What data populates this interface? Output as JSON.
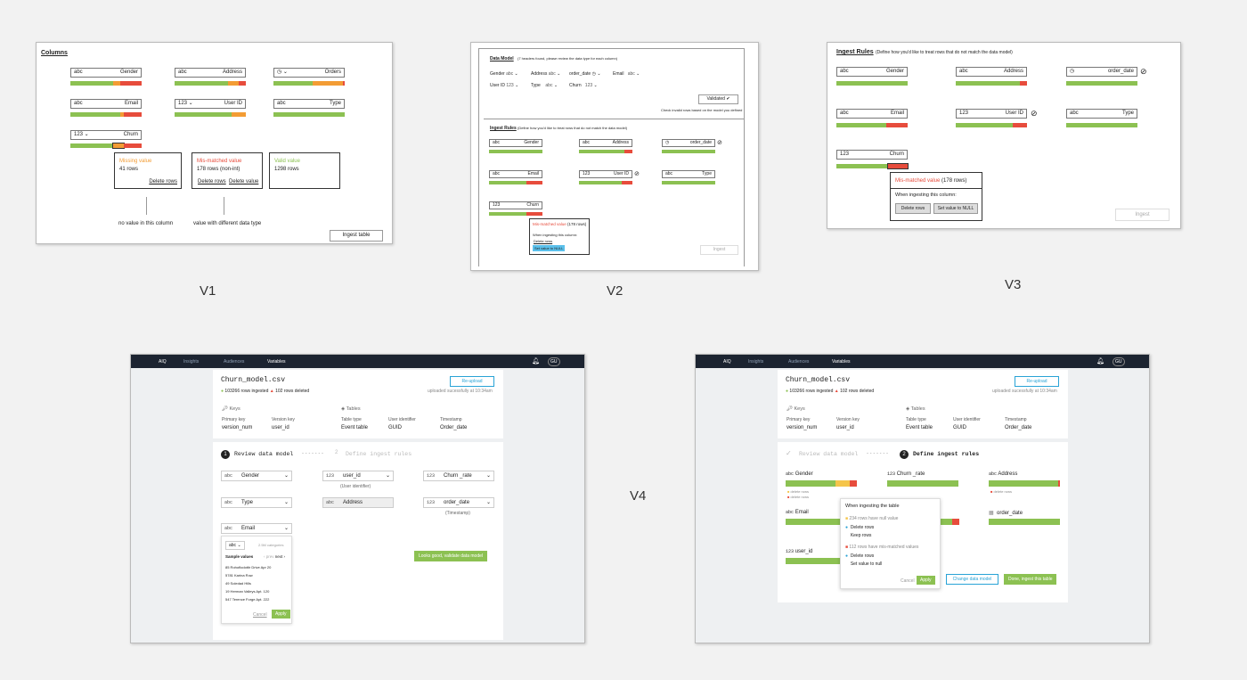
{
  "labels": {
    "v1": "V1",
    "v2": "V2",
    "v3": "V3",
    "v4": "V4"
  },
  "v1": {
    "title": "Columns",
    "columns": [
      {
        "type": "abc",
        "name": "Gender"
      },
      {
        "type": "abc",
        "name": "Address"
      },
      {
        "type": "clock",
        "name": "Orders"
      },
      {
        "type": "abc",
        "name": "Email"
      },
      {
        "type": "123",
        "name": "User ID"
      },
      {
        "type": "abc",
        "name": "Type"
      },
      {
        "type": "123",
        "name": "Churn"
      }
    ],
    "missing": {
      "title": "Missing value",
      "count": "41 rows",
      "action": "Delete rows"
    },
    "mismatch": {
      "title": "Mis-matched value",
      "count": "178 rows (non-int)",
      "action1": "Delete rows",
      "action2": "Delete value"
    },
    "valid": {
      "title": "Valid value",
      "count": "1298 rows"
    },
    "note_missing": "no value in this column",
    "note_mismatch": "value with different data type",
    "ingest_button": "Ingest table"
  },
  "v2": {
    "data_model_title": "Data Model",
    "data_model_hint": "(7 headers found, please review the data type for each column)",
    "row1": [
      {
        "k": "Gender",
        "v": "abc"
      },
      {
        "k": "Address",
        "v": "abc"
      },
      {
        "k": "order_date",
        "v": "clock"
      },
      {
        "k": "Email",
        "v": "abc"
      }
    ],
    "row2": [
      {
        "k": "User ID",
        "v": "123"
      },
      {
        "k": "Type",
        "v": "abc"
      },
      {
        "k": "Churn",
        "v": "123"
      }
    ],
    "validated_button": "Validated ✔",
    "validated_note": "Check invalid rows based on the model you defined",
    "ingest_rules_title": "Ingest Rules",
    "ingest_rules_hint": "(Define how you'd like to treat rows that do not match the data model)",
    "columns": [
      {
        "type": "abc",
        "name": "Gender"
      },
      {
        "type": "abc",
        "name": "Address"
      },
      {
        "type": "clock",
        "name": "order_date"
      },
      {
        "type": "abc",
        "name": "Email"
      },
      {
        "type": "123",
        "name": "User ID"
      },
      {
        "type": "abc",
        "name": "Type"
      },
      {
        "type": "123",
        "name": "Churn"
      }
    ],
    "popup_title": "Mis-matched value",
    "popup_count": "(178 rows)",
    "popup_text": "When ingesting this column:",
    "popup_opt1": "Delete rows",
    "popup_opt2": "Set value to NULL",
    "ingest_button": "Ingest"
  },
  "v3": {
    "title": "Ingest Rules",
    "hint": "(Define how you'd like to treat rows that do not match the data model)",
    "columns": [
      {
        "type": "abc",
        "name": "Gender"
      },
      {
        "type": "abc",
        "name": "Address"
      },
      {
        "type": "clock",
        "name": "order_date"
      },
      {
        "type": "abc",
        "name": "Email"
      },
      {
        "type": "123",
        "name": "User ID"
      },
      {
        "type": "abc",
        "name": "Type"
      },
      {
        "type": "123",
        "name": "Churn"
      }
    ],
    "popup_title": "Mis-matched value",
    "popup_count": "(178 rows)",
    "popup_text": "When ingesting this column:",
    "popup_btn1": "Delete rows",
    "popup_btn2": "Set value to NULL",
    "ingest_button": "Ingest"
  },
  "v4": {
    "nav": {
      "logo": "AIQ",
      "items": [
        "Insights",
        "Audiences",
        "Variables"
      ],
      "avatar": "GU"
    },
    "file": "Churn_model.csv",
    "ingested": "103266 rows ingested",
    "deleted": "102 rows deleted",
    "reupload": "Re-upload",
    "uploaded": "uploaded sucessfully at 10:34am",
    "keys_title": "Keys",
    "tables_title": "Tables",
    "keys": [
      {
        "k": "Primary key",
        "v": "version_num"
      },
      {
        "k": "Version key",
        "v": "user_id"
      }
    ],
    "tables": [
      {
        "k": "Table type",
        "v": "Event table"
      },
      {
        "k": "User identifier",
        "v": "GUID"
      },
      {
        "k": "Timestamp",
        "v": "Order_date"
      }
    ],
    "step1": "Review data model",
    "step2": "Define ingest rules",
    "step1_num": "1",
    "step2_num": "2",
    "left": {
      "fields": [
        {
          "type": "abc",
          "name": "Gender"
        },
        {
          "type": "123",
          "name": "user_id",
          "sub": "(User identifier)"
        },
        {
          "type": "123",
          "name": "Churn _rate"
        },
        {
          "type": "abc",
          "name": "Type"
        },
        {
          "type": "abc",
          "name": "Address"
        },
        {
          "type": "123",
          "name": "order_date",
          "sub": "(Timestamp)"
        },
        {
          "type": "abc",
          "name": "Email"
        }
      ],
      "dropdown": {
        "type": "abc",
        "categories": "2.5M categories",
        "sample": "Sample values",
        "prev": "prev",
        "next": "next",
        "values": [
          "85 Rohoflodottir Drive Apr 20",
          "5781 Karina Row",
          "49 Soledad Hills",
          "19 Herman Valleys Apt. 120",
          "547 Terence Forge Apt. 222"
        ],
        "cancel": "Cancel",
        "apply": "Apply"
      },
      "validate_button": "Looks good, validate data model"
    },
    "right": {
      "cols": [
        {
          "type": "abc",
          "name": "Gender"
        },
        {
          "type": "123",
          "name": "Churn _rate"
        },
        {
          "type": "abc",
          "name": "Address"
        },
        {
          "type": "abc",
          "name": "Email"
        },
        {
          "type": "clock",
          "name": "order_date"
        },
        {
          "type": "123",
          "name": "user_id"
        }
      ],
      "legend1": "delete rows",
      "legend2": "delete rows",
      "popup": {
        "title": "When ingesting the table",
        "null_head": "234 rows have null value",
        "null_opt1": "Delete rows",
        "null_opt2": "Keep rows",
        "mis_head": "112 rows have mis-matched values",
        "mis_opt1": "Delete rows",
        "mis_opt2": "Set value to null",
        "cancel": "Cancel",
        "apply": "Apply"
      },
      "change_button": "Change data model",
      "done_button": "Done, ingest this table"
    }
  }
}
